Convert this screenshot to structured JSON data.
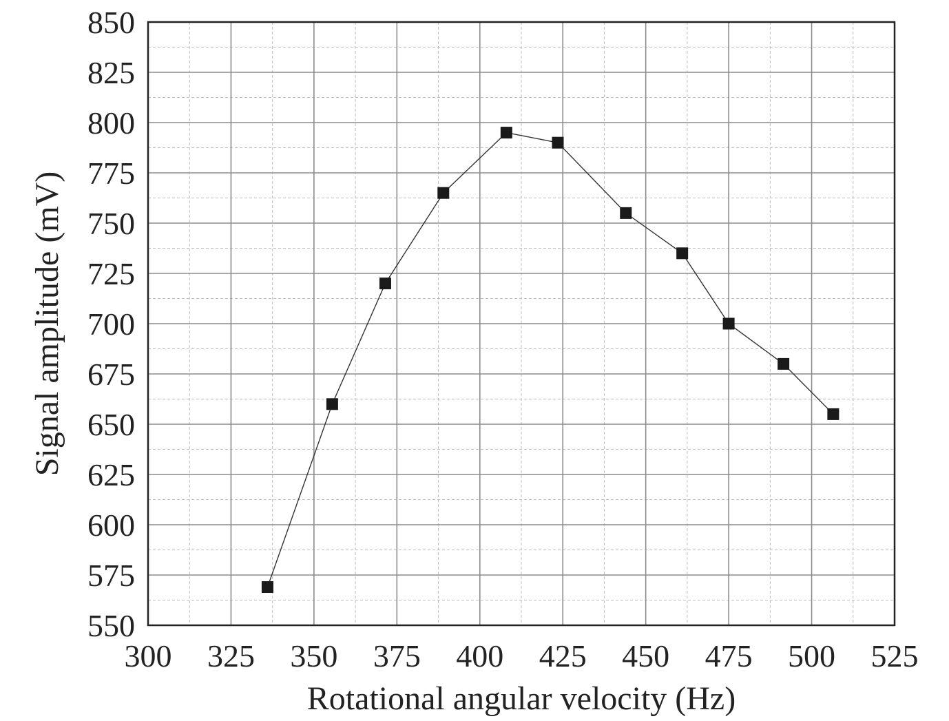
{
  "chart_data": {
    "type": "line",
    "title": "",
    "xlabel": "Rotational angular velocity (Hz)",
    "ylabel": "Signal amplitude (mV)",
    "xlim": [
      300,
      525
    ],
    "ylim": [
      550,
      850
    ],
    "x_ticks": [
      300,
      325,
      350,
      375,
      400,
      425,
      450,
      475,
      500,
      525
    ],
    "y_ticks": [
      550,
      575,
      600,
      625,
      650,
      675,
      700,
      725,
      750,
      775,
      800,
      825,
      850
    ],
    "grid": true,
    "minor_grid": true,
    "legend": "none",
    "marker": "square",
    "colors": {
      "line": "#333333",
      "marker": "#1a1a1a",
      "major_grid": "#8c8c8c",
      "minor_grid": "#bdbdbd",
      "frame": "#222222"
    },
    "series": [
      {
        "x": [
          336,
          355.5,
          371.5,
          389,
          408,
          423.5,
          444,
          461,
          475,
          491.5,
          506.5
        ],
        "y": [
          569,
          660,
          720,
          765,
          795,
          790,
          755,
          735,
          700,
          680,
          655
        ]
      }
    ]
  }
}
